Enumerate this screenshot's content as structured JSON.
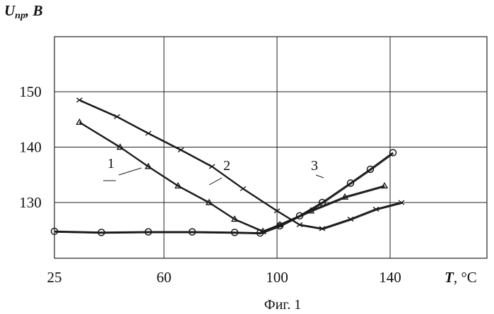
{
  "page": {
    "caption": "Фиг. 1"
  },
  "chart_data": {
    "type": "line",
    "ylabel_main": "U",
    "ylabel_sub": "пр",
    "ylabel_unit": ", B",
    "xlabel_main": "T",
    "xlabel_unit": ", °C",
    "x_ticks": [
      25,
      60,
      100,
      140
    ],
    "x_tick_labels": [
      "25",
      "60",
      "100",
      "140"
    ],
    "y_ticks": [
      130,
      140,
      150
    ],
    "y_tick_labels": [
      "130",
      "140",
      "150"
    ],
    "xlim": [
      25,
      180
    ],
    "ylim": [
      120,
      160
    ],
    "grid": true,
    "grid_color": "#222222",
    "line_color": "#1a1a1a",
    "series": [
      {
        "name": "1",
        "points": [
          [
            33,
            144.5
          ],
          [
            46,
            140
          ],
          [
            55,
            136.5
          ],
          [
            65,
            133
          ],
          [
            76,
            130
          ],
          [
            85,
            127
          ],
          [
            95,
            124.8
          ],
          [
            101,
            126
          ],
          [
            112,
            128.5
          ],
          [
            124,
            131
          ],
          [
            138,
            133
          ]
        ]
      },
      {
        "name": "2",
        "points": [
          [
            33,
            148.5
          ],
          [
            45,
            145.5
          ],
          [
            55,
            142.5
          ],
          [
            66,
            139.5
          ],
          [
            77,
            136.5
          ],
          [
            88,
            132.5
          ],
          [
            100,
            128.5
          ],
          [
            108,
            126
          ],
          [
            116,
            125.3
          ],
          [
            126,
            127
          ],
          [
            135,
            128.8
          ],
          [
            144,
            130
          ]
        ]
      },
      {
        "name": "3",
        "points": [
          [
            25,
            124.8
          ],
          [
            40,
            124.6
          ],
          [
            55,
            124.7
          ],
          [
            70,
            124.7
          ],
          [
            85,
            124.6
          ],
          [
            94,
            124.5
          ],
          [
            101,
            125.8
          ],
          [
            108,
            127.6
          ],
          [
            116,
            130
          ],
          [
            126,
            133.5
          ],
          [
            133,
            136
          ],
          [
            141,
            139
          ]
        ]
      }
    ]
  }
}
